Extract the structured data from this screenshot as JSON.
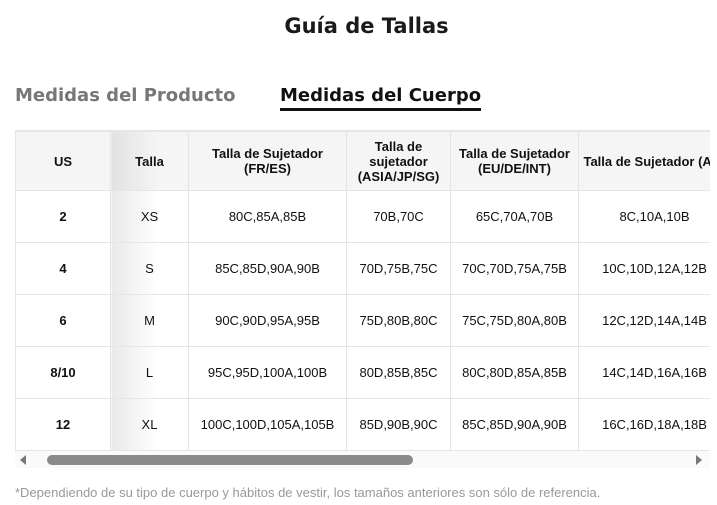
{
  "title": "Guía de Tallas",
  "tabs": [
    {
      "label": "Medidas del Producto",
      "active": false
    },
    {
      "label": "Medidas del Cuerpo",
      "active": true
    }
  ],
  "table": {
    "headers": [
      "US",
      "Talla",
      "Talla de Sujetador (FR/ES)",
      "Talla de sujetador (ASIA/JP/SG)",
      "Talla de Sujetador (EU/DE/INT)",
      "Talla de Sujetador (AU)"
    ],
    "rows": [
      [
        "2",
        "XS",
        "80C,85A,85B",
        "70B,70C",
        "65C,70A,70B",
        "8C,10A,10B"
      ],
      [
        "4",
        "S",
        "85C,85D,90A,90B",
        "70D,75B,75C",
        "70C,70D,75A,75B",
        "10C,10D,12A,12B"
      ],
      [
        "6",
        "M",
        "90C,90D,95A,95B",
        "75D,80B,80C",
        "75C,75D,80A,80B",
        "12C,12D,14A,14B"
      ],
      [
        "8/10",
        "L",
        "95C,95D,100A,100B",
        "80D,85B,85C",
        "80C,80D,85A,85B",
        "14C,14D,16A,16B"
      ],
      [
        "12",
        "XL",
        "100C,100D,105A,105B",
        "85D,90B,90C",
        "85C,85D,90A,90B",
        "16C,16D,18A,18B"
      ]
    ]
  },
  "note": "*Dependiendo de su tipo de cuerpo y hábitos de vestir, los tamaños anteriores son sólo de referencia."
}
